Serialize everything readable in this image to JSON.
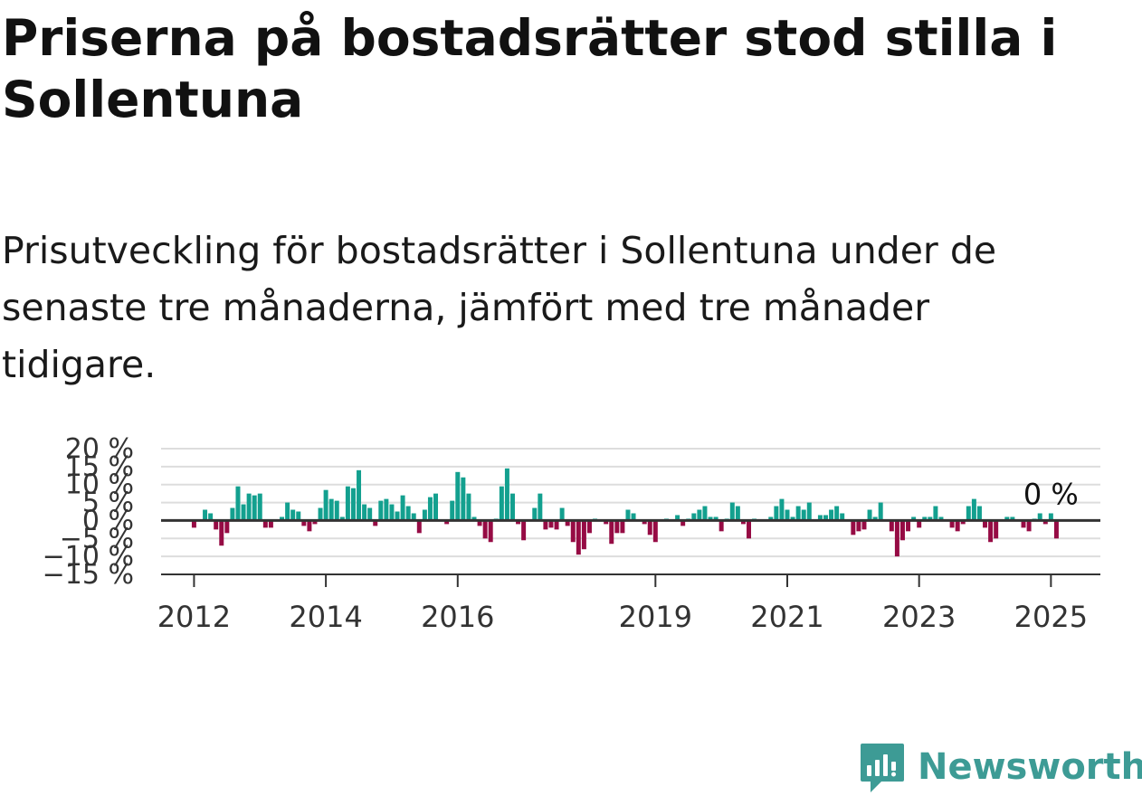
{
  "title": "Priserna på bostadsrätter stod stilla i Sollentuna",
  "subtitle": "Prisutveckling för bostadsrätter i Sollentuna under de senaste tre månaderna, jämfört med tre månader tidigare.",
  "brand": {
    "name": "Newsworthy",
    "color": "#3d9b95"
  },
  "colors": {
    "positive": "#13a08f",
    "negative": "#960b44",
    "grid": "#dddddd",
    "axis": "#333333"
  },
  "chart_data": {
    "type": "bar",
    "title": "",
    "xlabel": "",
    "ylabel": "",
    "ylim": [
      -15,
      20
    ],
    "y_ticks": [
      -15,
      -10,
      -5,
      0,
      5,
      10,
      15,
      20
    ],
    "y_tick_labels": [
      "−15 %",
      "−10 %",
      "−5 %",
      "0 %",
      "5 %",
      "10 %",
      "15 %",
      "20 %"
    ],
    "x_ticks": [
      "2012",
      "2014",
      "2016",
      "2019",
      "2021",
      "2023",
      "2025"
    ],
    "x_range": [
      "2011-07",
      "2025-10"
    ],
    "grid": true,
    "annotation": {
      "label": "0 %",
      "x": "2025-01",
      "value": 0
    },
    "start": "2012-01",
    "series": [
      {
        "values": [
          -2,
          0,
          3,
          2,
          -2.5,
          -7,
          -3.5,
          3.5,
          9.5,
          4.5,
          7.5,
          7,
          7.5,
          -2,
          -2,
          0,
          1,
          5,
          3,
          2.5,
          -1.5,
          -3,
          -1,
          3.5,
          8.5,
          6,
          5.5,
          1,
          9.5,
          9,
          14,
          4.5,
          3.5,
          -1.5,
          5.5,
          6,
          4.5,
          2.5,
          7,
          4,
          2,
          -3.5,
          3,
          6.5,
          7.5,
          0,
          -1,
          5.5,
          13.5,
          12,
          7.5,
          1,
          -1.5,
          -5,
          -6,
          0.5,
          9.5,
          14.5,
          7.5,
          -1,
          -5.5,
          0,
          3.5,
          7.5,
          -2.5,
          -2,
          -2.5,
          3.5,
          -1.5,
          -6,
          -9.5,
          -8,
          -3.5,
          0.5,
          0,
          -1,
          -6.5,
          -3.5,
          -3.5,
          3,
          2,
          0,
          -1,
          -4,
          -6,
          0,
          0.5,
          0,
          1.5,
          -1.5,
          0.5,
          2,
          3,
          4,
          1,
          1,
          -3,
          0.5,
          5,
          4,
          -1,
          -5,
          0.5,
          0,
          0,
          1,
          4,
          6,
          3,
          1,
          4,
          3,
          5,
          0,
          1.5,
          1.5,
          3,
          4,
          2,
          0,
          -4,
          -3,
          -2.5,
          3,
          1,
          5,
          0,
          -3,
          -10,
          -5.5,
          -3,
          1,
          -2,
          1,
          1,
          4,
          1,
          0,
          -2,
          -3,
          -1,
          4,
          6,
          4,
          -2,
          -6,
          -5,
          0,
          1,
          1,
          0,
          -2,
          -3,
          0.5,
          2,
          -1,
          2,
          -5
        ]
      }
    ]
  }
}
